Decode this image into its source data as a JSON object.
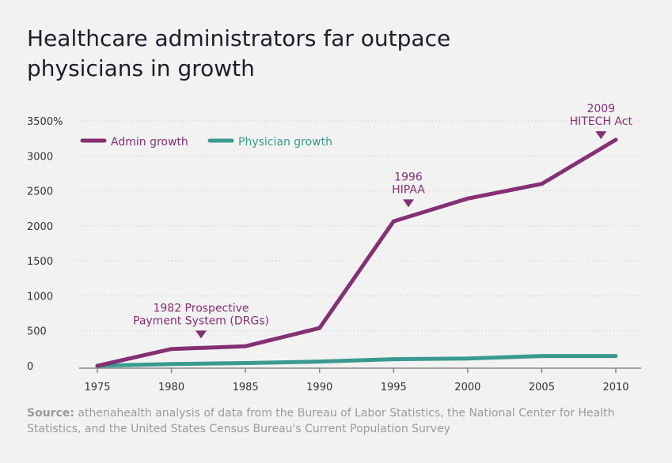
{
  "title": "Healthcare administrators far outpace physicians in growth",
  "source": {
    "label": "Source:",
    "text": " athenahealth analysis of data from the Bureau of Labor Statistics, the National Center for Health Statistics, and the United States Census Bureau's Current Population Survey"
  },
  "chart_data": {
    "type": "line",
    "title": "Healthcare administrators far outpace physicians in growth",
    "x": [
      1975,
      1980,
      1985,
      1990,
      1995,
      2000,
      2005,
      2010
    ],
    "xlim": [
      1975,
      2010
    ],
    "ylim": [
      0,
      3500
    ],
    "yticks": [
      0,
      500,
      1000,
      1500,
      2000,
      2500,
      3000,
      3500
    ],
    "ytick_labels": [
      "0",
      "500",
      "1000",
      "1500",
      "2000",
      "2500",
      "3000",
      "3500%"
    ],
    "xtick_labels": [
      "1975",
      "1980",
      "1985",
      "1990",
      "1995",
      "2000",
      "2005",
      "2010"
    ],
    "grid": "horizontal dotted",
    "legend_position": "top-left",
    "series": [
      {
        "name": "Admin growth",
        "color": "#852f74",
        "values": [
          0,
          240,
          280,
          540,
          2065,
          2390,
          2600,
          3230
        ]
      },
      {
        "name": "Physician growth",
        "color": "#3a9a8f",
        "values": [
          0,
          25,
          40,
          60,
          95,
          105,
          140,
          140
        ]
      }
    ],
    "annotations": [
      {
        "x": 1982,
        "lines": [
          "1982 Prospective",
          "Payment System (DRGs)"
        ]
      },
      {
        "x": 1996,
        "lines": [
          "1996",
          "HIPAA"
        ]
      },
      {
        "x": 2009,
        "lines": [
          "2009",
          "HITECH Act"
        ]
      }
    ]
  }
}
